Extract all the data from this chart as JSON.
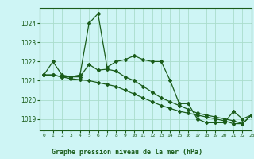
{
  "title": "Graphe pression niveau de la mer (hPa)",
  "bg_color": "#cef5f5",
  "grid_color": "#aaddcc",
  "line_color": "#1a5c1a",
  "xlim": [
    -0.5,
    23
  ],
  "ylim": [
    1018.4,
    1024.8
  ],
  "yticks": [
    1019,
    1020,
    1021,
    1022,
    1023,
    1024
  ],
  "xticks": [
    0,
    1,
    2,
    3,
    4,
    5,
    6,
    7,
    8,
    9,
    10,
    11,
    12,
    13,
    14,
    15,
    16,
    17,
    18,
    19,
    20,
    21,
    22,
    23
  ],
  "series1_x": [
    0,
    1,
    2,
    3,
    4,
    5,
    6,
    7,
    8,
    9,
    10,
    11,
    12,
    13,
    14,
    15,
    16,
    17,
    18,
    19,
    20,
    21,
    22,
    23
  ],
  "series1_y": [
    1021.3,
    1022.0,
    1021.3,
    1021.2,
    1021.3,
    1024.0,
    1024.5,
    1021.7,
    1022.0,
    1022.1,
    1022.3,
    1022.1,
    1022.0,
    1022.0,
    1021.0,
    1019.8,
    1019.8,
    1019.0,
    1018.8,
    1018.8,
    1018.8,
    1019.4,
    1019.0,
    1019.2
  ],
  "series2_x": [
    0,
    1,
    2,
    3,
    4,
    5,
    6,
    7,
    8,
    9,
    10,
    11,
    12,
    13,
    14,
    15,
    16,
    17,
    18,
    19,
    20,
    21,
    22,
    23
  ],
  "series2_y": [
    1021.3,
    1021.3,
    1021.2,
    1021.2,
    1021.2,
    1021.85,
    1021.55,
    1021.6,
    1021.5,
    1021.2,
    1021.0,
    1020.7,
    1020.4,
    1020.1,
    1019.9,
    1019.7,
    1019.5,
    1019.3,
    1019.2,
    1019.1,
    1019.0,
    1018.9,
    1018.75,
    1019.2
  ],
  "series3_x": [
    0,
    1,
    2,
    3,
    4,
    5,
    6,
    7,
    8,
    9,
    10,
    11,
    12,
    13,
    14,
    15,
    16,
    17,
    18,
    19,
    20,
    21,
    22,
    23
  ],
  "series3_y": [
    1021.3,
    1021.3,
    1021.2,
    1021.1,
    1021.05,
    1021.0,
    1020.9,
    1020.8,
    1020.7,
    1020.5,
    1020.3,
    1020.1,
    1019.9,
    1019.7,
    1019.55,
    1019.4,
    1019.3,
    1019.2,
    1019.1,
    1019.0,
    1018.9,
    1018.75,
    1018.75,
    1019.2
  ]
}
